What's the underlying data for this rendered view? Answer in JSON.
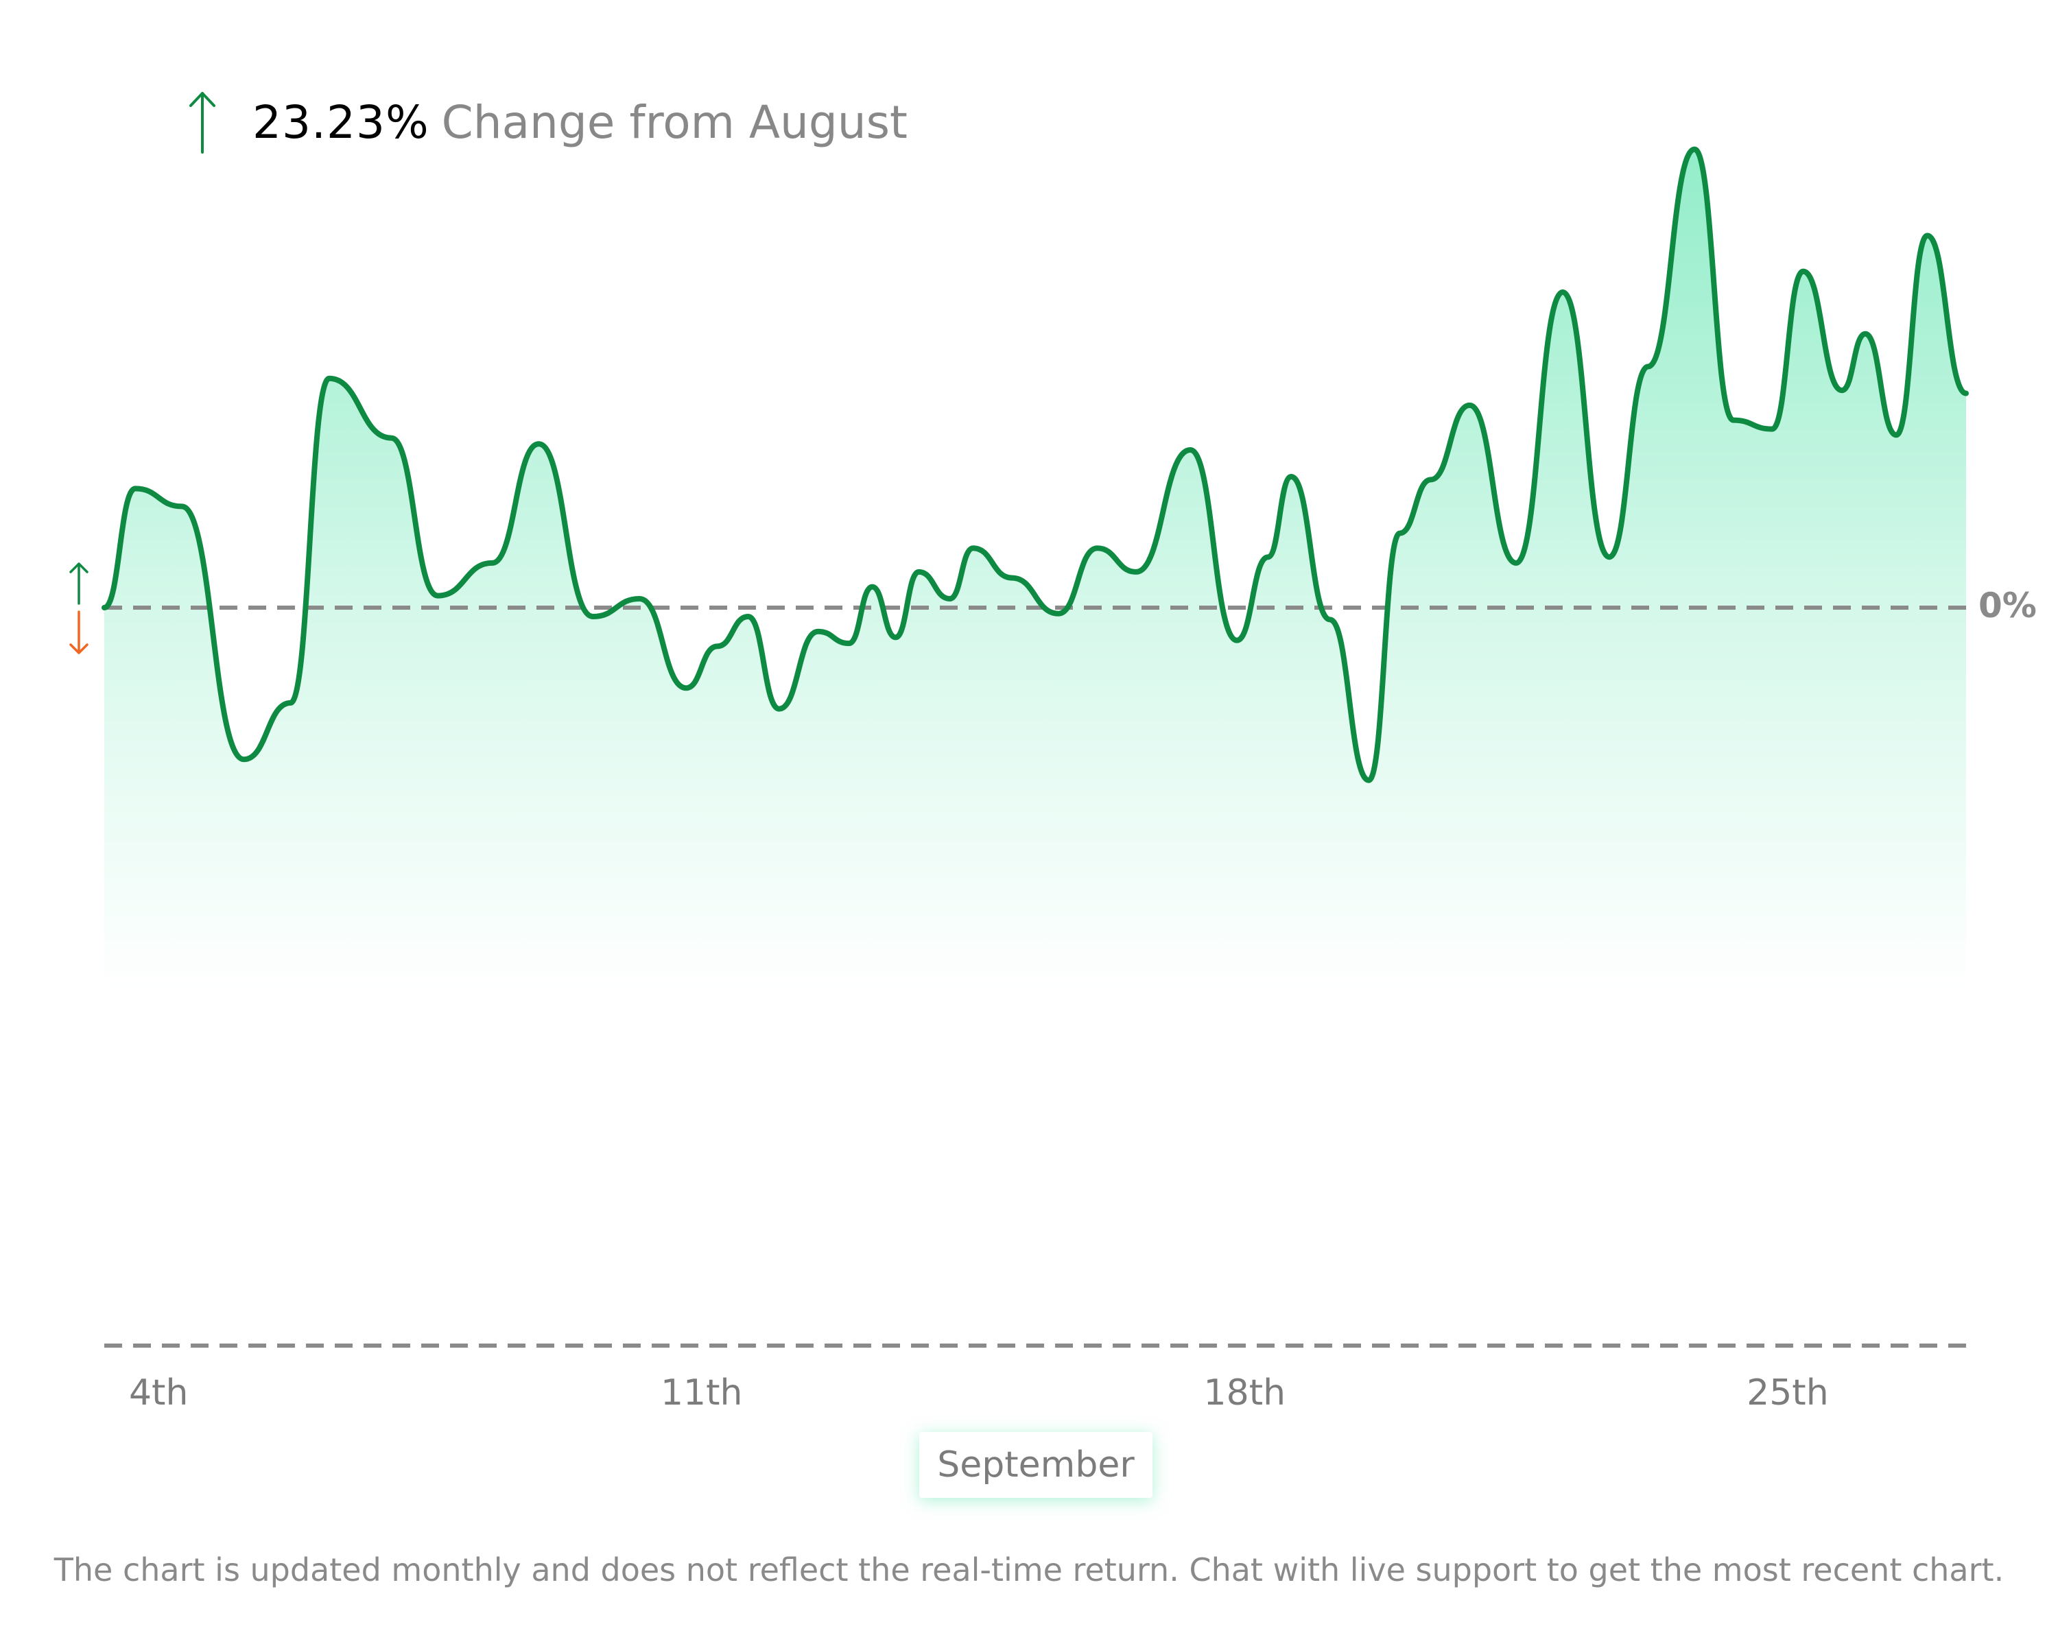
{
  "header": {
    "change_value": "23.23%",
    "change_label": "Change from August",
    "direction": "up"
  },
  "zero_label": "0%",
  "month_label": "September",
  "footnote": "The chart is updated monthly and does not reflect the real-time return. Chat with live support to get the most recent chart.",
  "colors": {
    "line": "#0f8a42",
    "fill_top": "#6ee7b7",
    "up_arrow": "#0f8a42",
    "down_arrow": "#f26522",
    "gridline": "#8a8a8a"
  },
  "legend_icons": [
    "up-arrow-icon",
    "down-arrow-icon"
  ],
  "chart_data": {
    "type": "area",
    "title": "",
    "xlabel": "September",
    "ylabel": "",
    "x_ticks": [
      {
        "day": 4,
        "label": "4th"
      },
      {
        "day": 11,
        "label": "11th"
      },
      {
        "day": 18,
        "label": "18th"
      },
      {
        "day": 25,
        "label": "25th"
      }
    ],
    "baseline_label": "0%",
    "grid": false,
    "series": [
      {
        "points": [
          [
            3.3,
            0.0
          ],
          [
            3.7,
            4.0
          ],
          [
            4.3,
            3.4
          ],
          [
            5.1,
            -5.1
          ],
          [
            5.7,
            -3.2
          ],
          [
            6.2,
            7.7
          ],
          [
            7.0,
            5.7
          ],
          [
            7.6,
            0.4
          ],
          [
            8.3,
            1.5
          ],
          [
            8.9,
            5.5
          ],
          [
            9.6,
            -0.3
          ],
          [
            10.2,
            0.3
          ],
          [
            10.8,
            -2.7
          ],
          [
            11.2,
            -1.3
          ],
          [
            11.6,
            -0.3
          ],
          [
            12.0,
            -3.4
          ],
          [
            12.5,
            -0.8
          ],
          [
            12.9,
            -1.2
          ],
          [
            13.2,
            0.7
          ],
          [
            13.5,
            -1.0
          ],
          [
            13.8,
            1.2
          ],
          [
            14.2,
            0.3
          ],
          [
            14.5,
            2.0
          ],
          [
            15.0,
            1.0
          ],
          [
            15.6,
            -0.2
          ],
          [
            16.1,
            2.0
          ],
          [
            16.6,
            1.2
          ],
          [
            17.3,
            5.3
          ],
          [
            17.9,
            -1.1
          ],
          [
            18.3,
            1.7
          ],
          [
            18.6,
            4.4
          ],
          [
            19.1,
            -0.4
          ],
          [
            19.6,
            -5.8
          ],
          [
            20.0,
            2.5
          ],
          [
            20.4,
            4.3
          ],
          [
            20.9,
            6.8
          ],
          [
            21.5,
            1.5
          ],
          [
            22.1,
            10.6
          ],
          [
            22.7,
            1.7
          ],
          [
            23.2,
            8.1
          ],
          [
            23.8,
            15.4
          ],
          [
            24.3,
            6.3
          ],
          [
            24.8,
            6.0
          ],
          [
            25.2,
            11.3
          ],
          [
            25.7,
            7.3
          ],
          [
            26.0,
            9.2
          ],
          [
            26.4,
            5.8
          ],
          [
            26.8,
            12.5
          ],
          [
            27.3,
            7.2
          ]
        ]
      }
    ]
  }
}
